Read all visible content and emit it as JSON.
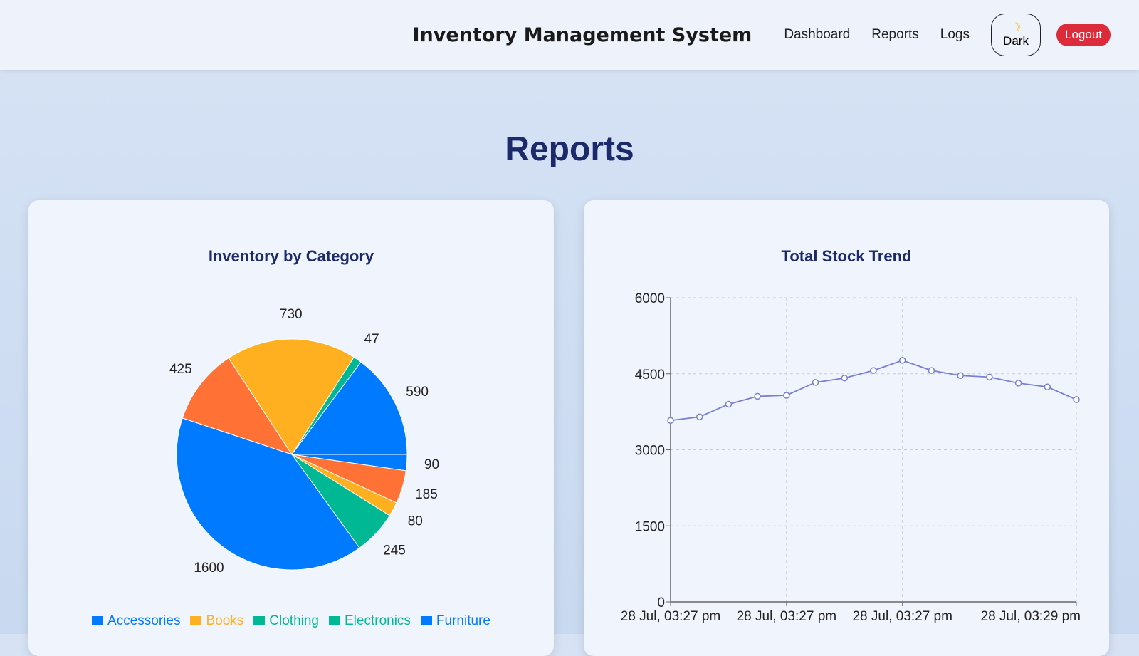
{
  "header": {
    "title": "Inventory Management System",
    "nav": [
      "Dashboard",
      "Reports",
      "Logs"
    ],
    "dark_label": "Dark",
    "dark_icon": "moon-icon",
    "logout_label": "Logout"
  },
  "page_title": "Reports",
  "chart_data": [
    {
      "type": "pie",
      "title": "Inventory by Category",
      "slices": [
        {
          "value": 90,
          "color": "#007bff"
        },
        {
          "value": 185,
          "color": "#ff7134"
        },
        {
          "value": 80,
          "color": "#ffb020"
        },
        {
          "value": 245,
          "color": "#00b894"
        },
        {
          "value": 1600,
          "color": "#007bff"
        },
        {
          "value": 425,
          "color": "#ff7134"
        },
        {
          "value": 730,
          "color": "#ffb020"
        },
        {
          "value": 47,
          "color": "#00b894"
        },
        {
          "value": 590,
          "color": "#007bff"
        }
      ],
      "legend": [
        {
          "label": "Accessories",
          "color": "#007bff"
        },
        {
          "label": "Books",
          "color": "#ffb020"
        },
        {
          "label": "Clothing",
          "color": "#00b894"
        },
        {
          "label": "Electronics",
          "color": "#00b894"
        },
        {
          "label": "Furniture",
          "color": "#007bff"
        }
      ]
    },
    {
      "type": "line",
      "title": "Total Stock Trend",
      "ylim": [
        0,
        6000
      ],
      "yticks": [
        0,
        1500,
        3000,
        4500,
        6000
      ],
      "xtick_labels": [
        "28 Jul, 03:27 pm",
        "28 Jul, 03:27 pm",
        "28 Jul, 03:27 pm",
        "28 Jul, 03:29 pm"
      ],
      "values": [
        3580,
        3650,
        3900,
        4055,
        4075,
        4330,
        4415,
        4565,
        4765,
        4565,
        4465,
        4435,
        4315,
        4240,
        3990
      ],
      "color": "#7b7fd1",
      "grid": true
    }
  ]
}
